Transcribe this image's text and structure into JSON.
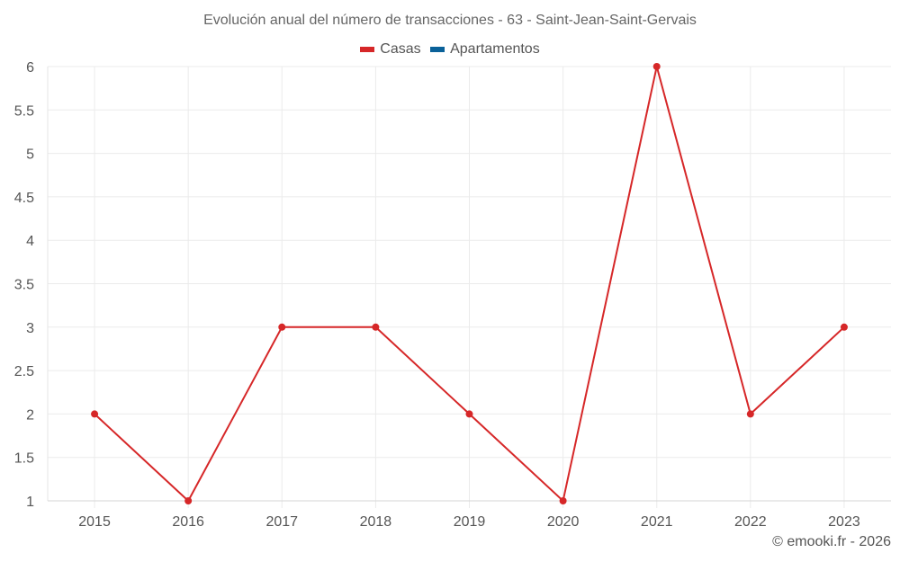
{
  "chart_data": {
    "type": "line",
    "title": "Evolución anual del número de transacciones - 63 - Saint-Jean-Saint-Gervais",
    "xlabel": "",
    "ylabel": "",
    "categories": [
      "2015",
      "2016",
      "2017",
      "2018",
      "2019",
      "2020",
      "2021",
      "2022",
      "2023"
    ],
    "series": [
      {
        "name": "Casas",
        "color": "#d62728",
        "values": [
          2,
          1,
          3,
          3,
          2,
          1,
          6,
          2,
          3
        ]
      },
      {
        "name": "Apartamentos",
        "color": "#0a6199",
        "values": []
      }
    ],
    "ylim": [
      1,
      6
    ],
    "yticks": [
      "1",
      "1.5",
      "2",
      "2.5",
      "3",
      "3.5",
      "4",
      "4.5",
      "5",
      "5.5",
      "6"
    ],
    "grid": true,
    "legend_position": "top"
  },
  "legend": [
    {
      "label": "Casas",
      "color": "#d62728"
    },
    {
      "label": "Apartamentos",
      "color": "#0a6199"
    }
  ],
  "credit": "© emooki.fr - 2026"
}
